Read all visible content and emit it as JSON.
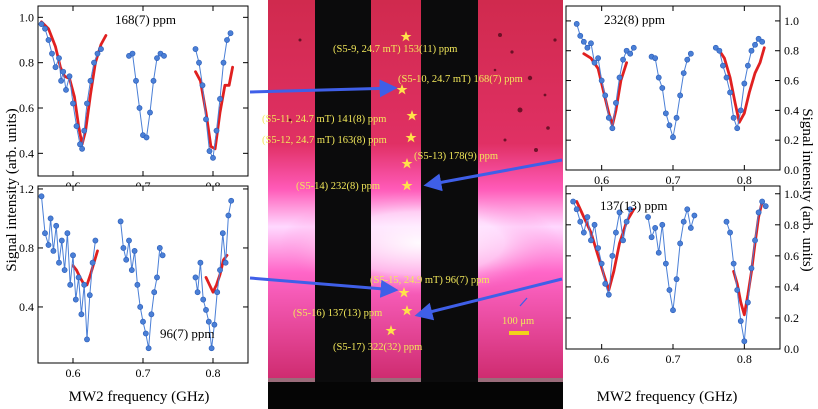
{
  "colors": {
    "points": "#4a7fd6",
    "fit": "#e02020",
    "arrow": "#3f5fe8",
    "star": "#ffe24a",
    "scale_bar": "#f2d21a"
  },
  "axis_labels": {
    "left_y": "Signal intensity (arb. units)",
    "right_y": "Signal intensity (arb. units)",
    "bottom_left_x": "MW2 frequency (GHz)",
    "bottom_right_x": "MW2 frequency (GHz)"
  },
  "image": {
    "scale_bar": "100 μm",
    "labels": [
      {
        "text": "(S5-9, 24.7 mT) 153(11) ppm"
      },
      {
        "text": "(S5-10, 24.7 mT) 168(7) ppm"
      },
      {
        "text": "(S5-11, 24.7 mT) 141(8) ppm"
      },
      {
        "text": "(S5-12, 24.7 mT) 163(8) ppm"
      },
      {
        "text": "(S5-13) 178(9) ppm"
      },
      {
        "text": "(S5-14) 232(8) ppm"
      },
      {
        "text": "(S5-15, 24.9 mT) 96(7) ppm"
      },
      {
        "text": "(S5-16) 137(13) ppm"
      },
      {
        "text": "(S5-17) 322(32) ppm"
      }
    ]
  },
  "chart_data": [
    {
      "type": "scatter",
      "title": "168(7) ppm",
      "xlim": [
        0.55,
        0.85
      ],
      "ylim": [
        0.3,
        1.05
      ],
      "xticks": [
        "0.6",
        "0.7",
        "0.8"
      ],
      "yticks": [
        "0.4",
        "0.6",
        "0.8",
        "1.0"
      ],
      "series": [
        {
          "kind": "points",
          "x": [
            0.555,
            0.56,
            0.565,
            0.57,
            0.575,
            0.58,
            0.583,
            0.586,
            0.59,
            0.595,
            0.6,
            0.605,
            0.61,
            0.613,
            0.616,
            0.62,
            0.625,
            0.63,
            0.635,
            0.64,
            0.68,
            0.685,
            0.69,
            0.695,
            0.7,
            0.705,
            0.71,
            0.715,
            0.72,
            0.725,
            0.73,
            0.775,
            0.78,
            0.785,
            0.79,
            0.795,
            0.8,
            0.805,
            0.81,
            0.815,
            0.82,
            0.825
          ],
          "y": [
            0.97,
            0.95,
            0.9,
            0.84,
            0.78,
            0.82,
            0.72,
            0.76,
            0.68,
            0.74,
            0.62,
            0.52,
            0.44,
            0.42,
            0.5,
            0.62,
            0.72,
            0.8,
            0.84,
            0.86,
            0.83,
            0.84,
            0.72,
            0.6,
            0.48,
            0.47,
            0.58,
            0.72,
            0.82,
            0.84,
            0.83,
            0.86,
            0.8,
            0.7,
            0.55,
            0.41,
            0.38,
            0.5,
            0.64,
            0.8,
            0.9,
            0.93
          ]
        },
        {
          "kind": "fit",
          "segments": [
            {
              "x": [
                0.555,
                0.565,
                0.575,
                0.582,
                0.588,
                0.595,
                0.602,
                0.608,
                0.613,
                0.618,
                0.625,
                0.632,
                0.64,
                0.647
              ],
              "y": [
                0.98,
                0.95,
                0.87,
                0.78,
                0.74,
                0.73,
                0.65,
                0.52,
                0.44,
                0.5,
                0.66,
                0.8,
                0.88,
                0.92
              ]
            },
            {
              "x": [
                0.775,
                0.782,
                0.79,
                0.797,
                0.803,
                0.81,
                0.817,
                0.823,
                0.828
              ],
              "y": [
                0.76,
                0.72,
                0.58,
                0.43,
                0.42,
                0.58,
                0.7,
                0.7,
                0.78
              ]
            }
          ]
        }
      ]
    },
    {
      "type": "scatter",
      "title": "232(8) ppm",
      "xlim": [
        0.55,
        0.85
      ],
      "ylim": [
        0.0,
        1.1
      ],
      "xticks": [
        "0.6",
        "0.7",
        "0.8"
      ],
      "yticks": [
        "0.0",
        "0.2",
        "0.4",
        "0.6",
        "0.8",
        "1.0"
      ],
      "series": [
        {
          "kind": "points",
          "x": [
            0.565,
            0.57,
            0.575,
            0.58,
            0.585,
            0.59,
            0.595,
            0.6,
            0.605,
            0.61,
            0.615,
            0.62,
            0.625,
            0.63,
            0.635,
            0.64,
            0.645,
            0.67,
            0.675,
            0.68,
            0.685,
            0.69,
            0.695,
            0.7,
            0.705,
            0.71,
            0.715,
            0.72,
            0.725,
            0.76,
            0.765,
            0.77,
            0.775,
            0.78,
            0.785,
            0.79,
            0.795,
            0.8,
            0.805,
            0.81,
            0.815,
            0.82,
            0.825
          ],
          "y": [
            0.98,
            0.9,
            0.86,
            0.82,
            0.85,
            0.72,
            0.75,
            0.6,
            0.5,
            0.35,
            0.28,
            0.45,
            0.62,
            0.74,
            0.8,
            0.78,
            0.82,
            0.76,
            0.75,
            0.62,
            0.55,
            0.38,
            0.3,
            0.22,
            0.35,
            0.5,
            0.65,
            0.74,
            0.78,
            0.82,
            0.8,
            0.7,
            0.62,
            0.52,
            0.35,
            0.28,
            0.4,
            0.58,
            0.7,
            0.8,
            0.84,
            0.88,
            0.86
          ]
        },
        {
          "kind": "fit",
          "segments": [
            {
              "x": [
                0.575,
                0.585,
                0.595,
                0.603,
                0.61,
                0.615,
                0.62,
                0.627,
                0.635
              ],
              "y": [
                0.78,
                0.75,
                0.68,
                0.52,
                0.38,
                0.3,
                0.4,
                0.6,
                0.72
              ]
            },
            {
              "x": [
                0.765,
                0.772,
                0.78,
                0.787,
                0.793,
                0.8,
                0.807,
                0.815,
                0.822,
                0.828
              ],
              "y": [
                0.8,
                0.75,
                0.62,
                0.45,
                0.32,
                0.38,
                0.52,
                0.65,
                0.72,
                0.82
              ]
            }
          ]
        }
      ]
    },
    {
      "type": "scatter",
      "title": "96(7) ppm",
      "xlim": [
        0.55,
        0.85
      ],
      "ylim": [
        0.02,
        1.22
      ],
      "xticks": [
        "0.6",
        "0.7",
        "0.8"
      ],
      "yticks": [
        "0.4",
        "0.8",
        "1.2"
      ],
      "series": [
        {
          "kind": "points",
          "x": [
            0.555,
            0.56,
            0.565,
            0.568,
            0.572,
            0.576,
            0.58,
            0.584,
            0.588,
            0.592,
            0.596,
            0.6,
            0.604,
            0.608,
            0.612,
            0.616,
            0.62,
            0.624,
            0.628,
            0.632,
            0.668,
            0.672,
            0.676,
            0.68,
            0.684,
            0.688,
            0.692,
            0.696,
            0.7,
            0.704,
            0.708,
            0.712,
            0.716,
            0.72,
            0.724,
            0.728,
            0.775,
            0.778,
            0.782,
            0.786,
            0.79,
            0.794,
            0.798,
            0.802,
            0.806,
            0.81,
            0.814,
            0.818,
            0.822,
            0.826
          ],
          "y": [
            1.15,
            0.9,
            0.82,
            1.0,
            0.78,
            0.95,
            0.7,
            0.85,
            0.65,
            0.9,
            0.55,
            0.75,
            0.45,
            0.6,
            0.35,
            0.55,
            0.18,
            0.48,
            0.7,
            0.85,
            0.98,
            0.8,
            0.72,
            0.85,
            0.65,
            0.78,
            0.55,
            0.4,
            0.3,
            0.22,
            0.12,
            0.35,
            0.5,
            0.6,
            0.8,
            0.75,
            0.6,
            0.5,
            0.7,
            0.45,
            0.38,
            0.3,
            0.12,
            0.28,
            0.5,
            0.65,
            0.9,
            0.7,
            1.02,
            1.12
          ]
        },
        {
          "kind": "fit",
          "segments": [
            {
              "x": [
                0.6,
                0.605,
                0.61,
                0.615,
                0.62,
                0.625,
                0.63,
                0.635
              ],
              "y": [
                0.68,
                0.65,
                0.6,
                0.56,
                0.55,
                0.62,
                0.7,
                0.78
              ]
            },
            {
              "x": [
                0.79,
                0.795,
                0.8,
                0.805,
                0.81,
                0.815,
                0.82
              ],
              "y": [
                0.6,
                0.55,
                0.5,
                0.55,
                0.62,
                0.72,
                0.75
              ]
            }
          ]
        }
      ]
    },
    {
      "type": "scatter",
      "title": "137(13) ppm",
      "xlim": [
        0.55,
        0.85
      ],
      "ylim": [
        0.0,
        1.05
      ],
      "xticks": [
        "0.6",
        "0.7",
        "0.8"
      ],
      "yticks": [
        "0.0",
        "0.2",
        "0.4",
        "0.6",
        "0.8",
        "1.0"
      ],
      "series": [
        {
          "kind": "points",
          "x": [
            0.56,
            0.565,
            0.57,
            0.575,
            0.58,
            0.585,
            0.59,
            0.595,
            0.6,
            0.605,
            0.61,
            0.615,
            0.62,
            0.625,
            0.63,
            0.635,
            0.64,
            0.665,
            0.67,
            0.675,
            0.68,
            0.685,
            0.69,
            0.695,
            0.7,
            0.705,
            0.71,
            0.715,
            0.72,
            0.725,
            0.73,
            0.775,
            0.78,
            0.785,
            0.79,
            0.795,
            0.8,
            0.805,
            0.81,
            0.815,
            0.82,
            0.825,
            0.83
          ],
          "y": [
            0.95,
            0.9,
            0.82,
            0.75,
            0.85,
            0.7,
            0.8,
            0.65,
            0.55,
            0.42,
            0.35,
            0.6,
            0.75,
            0.88,
            0.7,
            0.82,
            0.9,
            0.85,
            0.72,
            0.78,
            0.62,
            0.8,
            0.55,
            0.38,
            0.25,
            0.45,
            0.68,
            0.82,
            0.9,
            0.78,
            0.86,
            0.82,
            0.75,
            0.55,
            0.38,
            0.18,
            0.05,
            0.3,
            0.52,
            0.7,
            0.88,
            0.95,
            0.92
          ]
        },
        {
          "kind": "fit",
          "segments": [
            {
              "x": [
                0.565,
                0.575,
                0.585,
                0.595,
                0.603,
                0.61,
                0.617,
                0.625,
                0.635,
                0.645
              ],
              "y": [
                0.95,
                0.85,
                0.75,
                0.6,
                0.48,
                0.38,
                0.5,
                0.68,
                0.82,
                0.9
              ]
            },
            {
              "x": [
                0.785,
                0.79,
                0.795,
                0.8,
                0.805,
                0.81,
                0.815,
                0.82,
                0.825
              ],
              "y": [
                0.5,
                0.42,
                0.3,
                0.22,
                0.35,
                0.5,
                0.68,
                0.85,
                0.95
              ]
            }
          ]
        }
      ]
    }
  ]
}
